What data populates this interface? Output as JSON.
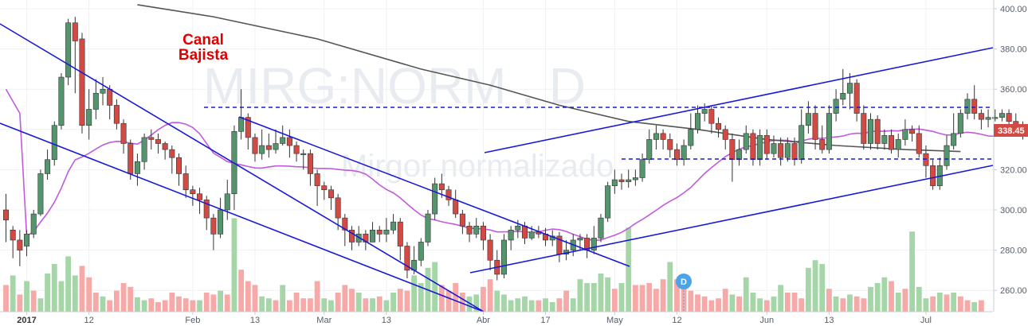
{
  "chart_data": {
    "type": "candlestick",
    "watermark_symbol": "MIRG:NORM , D",
    "watermark_name": "Mirgor normalizado",
    "annotation": {
      "line1": "Canal",
      "line2": "Bajista"
    },
    "last_price_label": "338.45",
    "dividend_marker": "D",
    "y_axis": {
      "ticks": [
        "260.00",
        "280.00",
        "300.00",
        "320.00",
        "340.00",
        "360.00",
        "380.00",
        "400.00"
      ],
      "ylim": [
        246,
        402
      ]
    },
    "x_axis": {
      "ticks": [
        {
          "label": "2017",
          "i": 3,
          "bold": true
        },
        {
          "label": "12",
          "i": 12
        },
        {
          "label": "Feb",
          "i": 27
        },
        {
          "label": "13",
          "i": 36
        },
        {
          "label": "Mar",
          "i": 46
        },
        {
          "label": "13",
          "i": 55
        },
        {
          "label": "Abr",
          "i": 69
        },
        {
          "label": "17",
          "i": 78
        },
        {
          "label": "May",
          "i": 88
        },
        {
          "label": "12",
          "i": 97
        },
        {
          "label": "Jun",
          "i": 110
        },
        {
          "label": "13",
          "i": 119
        },
        {
          "label": "Jul",
          "i": 133
        }
      ]
    },
    "candles": [
      [
        300,
        295,
        308,
        284
      ],
      [
        290,
        285,
        292,
        276
      ],
      [
        285,
        280,
        290,
        272
      ],
      [
        282,
        288,
        290,
        277
      ],
      [
        288,
        298,
        300,
        286
      ],
      [
        298,
        318,
        320,
        297
      ],
      [
        318,
        325,
        330,
        315
      ],
      [
        325,
        342,
        344,
        322
      ],
      [
        342,
        366,
        368,
        340
      ],
      [
        366,
        393,
        395,
        362
      ],
      [
        393,
        384,
        396,
        358
      ],
      [
        385,
        342,
        388,
        338
      ],
      [
        342,
        350,
        360,
        335
      ],
      [
        350,
        358,
        365,
        345
      ],
      [
        358,
        360,
        366,
        352
      ],
      [
        360,
        352,
        362,
        345
      ],
      [
        352,
        343,
        355,
        340
      ],
      [
        343,
        333,
        345,
        328
      ],
      [
        333,
        318,
        335,
        315
      ],
      [
        318,
        324,
        328,
        312
      ],
      [
        324,
        336,
        338,
        320
      ],
      [
        336,
        335,
        340,
        330
      ],
      [
        335,
        333,
        338,
        328
      ],
      [
        333,
        330,
        334,
        325
      ],
      [
        330,
        326,
        332,
        318
      ],
      [
        326,
        318,
        328,
        312
      ],
      [
        318,
        310,
        322,
        306
      ],
      [
        310,
        308,
        312,
        302
      ],
      [
        308,
        305,
        311,
        298
      ],
      [
        305,
        296,
        307,
        290
      ],
      [
        296,
        288,
        298,
        280
      ],
      [
        288,
        300,
        306,
        286
      ],
      [
        300,
        308,
        315,
        295
      ],
      [
        308,
        339,
        342,
        300
      ],
      [
        339,
        346,
        360,
        335
      ],
      [
        346,
        336,
        348,
        330
      ],
      [
        336,
        328,
        338,
        324
      ],
      [
        328,
        332,
        340,
        325
      ],
      [
        332,
        330,
        338,
        326
      ],
      [
        330,
        333,
        340,
        328
      ],
      [
        333,
        336,
        342,
        332
      ],
      [
        336,
        332,
        340,
        326
      ],
      [
        332,
        328,
        334,
        324
      ],
      [
        328,
        328,
        330,
        320
      ],
      [
        328,
        318,
        330,
        312
      ],
      [
        318,
        312,
        320,
        302
      ],
      [
        312,
        310,
        314,
        305
      ],
      [
        310,
        306,
        312,
        300
      ],
      [
        306,
        296,
        308,
        290
      ],
      [
        296,
        290,
        298,
        282
      ],
      [
        290,
        284,
        292,
        280
      ],
      [
        284,
        288,
        292,
        282
      ],
      [
        288,
        284,
        290,
        280
      ],
      [
        284,
        290,
        294,
        286
      ],
      [
        290,
        288,
        292,
        284
      ],
      [
        288,
        290,
        296,
        284
      ],
      [
        290,
        294,
        298,
        288
      ],
      [
        294,
        282,
        296,
        275
      ],
      [
        282,
        270,
        284,
        266
      ],
      [
        270,
        275,
        282,
        268
      ],
      [
        275,
        284,
        286,
        272
      ],
      [
        284,
        298,
        300,
        282
      ],
      [
        298,
        313,
        316,
        295
      ],
      [
        313,
        310,
        318,
        306
      ],
      [
        310,
        305,
        312,
        302
      ],
      [
        305,
        298,
        310,
        296
      ],
      [
        298,
        292,
        300,
        288
      ],
      [
        292,
        288,
        294,
        284
      ],
      [
        288,
        292,
        296,
        286
      ],
      [
        292,
        285,
        294,
        280
      ],
      [
        285,
        275,
        288,
        270
      ],
      [
        275,
        268,
        280,
        265
      ],
      [
        268,
        285,
        288,
        266
      ],
      [
        285,
        290,
        292,
        280
      ],
      [
        290,
        292,
        295,
        286
      ],
      [
        292,
        286,
        294,
        283
      ],
      [
        286,
        289,
        292,
        285
      ],
      [
        289,
        288,
        292,
        286
      ],
      [
        288,
        285,
        291,
        282
      ],
      [
        285,
        287,
        290,
        282
      ],
      [
        287,
        278,
        289,
        274
      ],
      [
        278,
        280,
        285,
        275
      ],
      [
        280,
        285,
        288,
        277
      ],
      [
        285,
        286,
        288,
        280
      ],
      [
        286,
        280,
        288,
        276
      ],
      [
        280,
        286,
        292,
        278
      ],
      [
        286,
        296,
        298,
        284
      ],
      [
        296,
        312,
        314,
        294
      ],
      [
        312,
        315,
        320,
        308
      ],
      [
        315,
        314,
        318,
        310
      ],
      [
        314,
        315,
        320,
        311
      ],
      [
        315,
        316,
        320,
        312
      ],
      [
        316,
        325,
        328,
        314
      ],
      [
        325,
        335,
        340,
        323
      ],
      [
        335,
        338,
        342,
        330
      ],
      [
        338,
        335,
        340,
        330
      ],
      [
        335,
        330,
        338,
        326
      ],
      [
        330,
        325,
        333,
        322
      ],
      [
        325,
        332,
        335,
        322
      ],
      [
        332,
        340,
        348,
        330
      ],
      [
        340,
        348,
        352,
        338
      ],
      [
        348,
        350,
        353,
        344
      ],
      [
        350,
        343,
        352,
        338
      ],
      [
        343,
        340,
        346,
        336
      ],
      [
        340,
        335,
        342,
        330
      ],
      [
        335,
        325,
        338,
        314
      ],
      [
        325,
        330,
        335,
        322
      ],
      [
        330,
        338,
        342,
        328
      ],
      [
        338,
        325,
        340,
        322
      ],
      [
        325,
        337,
        340,
        322
      ],
      [
        337,
        328,
        340,
        325
      ],
      [
        328,
        333,
        337,
        326
      ],
      [
        333,
        326,
        336,
        322
      ],
      [
        326,
        333,
        336,
        324
      ],
      [
        333,
        325,
        336,
        322
      ],
      [
        325,
        342,
        350,
        323
      ],
      [
        342,
        348,
        354,
        338
      ],
      [
        348,
        335,
        352,
        330
      ],
      [
        335,
        330,
        342,
        328
      ],
      [
        330,
        348,
        352,
        328
      ],
      [
        348,
        355,
        360,
        344
      ],
      [
        355,
        358,
        370,
        352
      ],
      [
        358,
        363,
        368,
        350
      ],
      [
        363,
        348,
        365,
        344
      ],
      [
        348,
        333,
        352,
        330
      ],
      [
        333,
        345,
        348,
        330
      ],
      [
        345,
        333,
        347,
        330
      ],
      [
        333,
        337,
        340,
        330
      ],
      [
        337,
        330,
        340,
        328
      ],
      [
        330,
        335,
        338,
        326
      ],
      [
        335,
        340,
        345,
        332
      ],
      [
        340,
        338,
        342,
        334
      ],
      [
        338,
        328,
        342,
        326
      ],
      [
        328,
        322,
        332,
        316
      ],
      [
        322,
        312,
        325,
        310
      ],
      [
        312,
        322,
        326,
        310
      ],
      [
        322,
        332,
        337,
        320
      ],
      [
        332,
        338,
        348,
        330
      ],
      [
        338,
        348,
        350,
        336
      ],
      [
        348,
        355,
        358,
        345
      ],
      [
        355,
        348,
        362,
        345
      ],
      [
        348,
        345,
        350,
        340
      ],
      [
        345,
        346,
        350,
        341
      ],
      [
        346,
        346,
        350,
        344
      ],
      [
        346,
        348,
        350,
        344
      ],
      [
        348,
        344,
        350,
        340
      ],
      [
        344,
        340,
        348,
        338
      ],
      [
        340,
        338,
        344,
        335
      ]
    ],
    "volume": [
      [
        0,
        0.28
      ],
      [
        1,
        0.38
      ],
      [
        0,
        0.18
      ],
      [
        1,
        0.32
      ],
      [
        0,
        0.22
      ],
      [
        1,
        0.14
      ],
      [
        1,
        0.4
      ],
      [
        1,
        0.5
      ],
      [
        1,
        0.32
      ],
      [
        1,
        0.58
      ],
      [
        1,
        0.38
      ],
      [
        0,
        0.48
      ],
      [
        0,
        0.36
      ],
      [
        0,
        0.2
      ],
      [
        1,
        0.16
      ],
      [
        0,
        0.12
      ],
      [
        0,
        0.22
      ],
      [
        0,
        0.3
      ],
      [
        0,
        0.26
      ],
      [
        1,
        0.15
      ],
      [
        1,
        0.12
      ],
      [
        0,
        0.14
      ],
      [
        0,
        0.1
      ],
      [
        0,
        0.12
      ],
      [
        0,
        0.2
      ],
      [
        0,
        0.16
      ],
      [
        0,
        0.14
      ],
      [
        0,
        0.12
      ],
      [
        1,
        0.12
      ],
      [
        0,
        0.2
      ],
      [
        0,
        0.18
      ],
      [
        1,
        0.22
      ],
      [
        0,
        0.18
      ],
      [
        1,
        0.98
      ],
      [
        0,
        0.44
      ],
      [
        0,
        0.32
      ],
      [
        0,
        0.28
      ],
      [
        1,
        0.16
      ],
      [
        1,
        0.14
      ],
      [
        0,
        0.12
      ],
      [
        1,
        0.28
      ],
      [
        0,
        0.12
      ],
      [
        0,
        0.2
      ],
      [
        0,
        0.14
      ],
      [
        0,
        0.14
      ],
      [
        0,
        0.32
      ],
      [
        1,
        0.14
      ],
      [
        1,
        0.12
      ],
      [
        0,
        0.2
      ],
      [
        0,
        0.28
      ],
      [
        0,
        0.24
      ],
      [
        1,
        0.2
      ],
      [
        0,
        0.14
      ],
      [
        1,
        0.14
      ],
      [
        0,
        0.16
      ],
      [
        1,
        0.12
      ],
      [
        1,
        0.2
      ],
      [
        0,
        0.24
      ],
      [
        0,
        0.22
      ],
      [
        1,
        0.38
      ],
      [
        1,
        0.3
      ],
      [
        1,
        0.46
      ],
      [
        1,
        0.52
      ],
      [
        0,
        0.28
      ],
      [
        0,
        0.22
      ],
      [
        0,
        0.3
      ],
      [
        0,
        0.2
      ],
      [
        1,
        0.16
      ],
      [
        1,
        0.18
      ],
      [
        0,
        0.26
      ],
      [
        0,
        0.34
      ],
      [
        1,
        0.22
      ],
      [
        1,
        0.18
      ],
      [
        1,
        0.12
      ],
      [
        1,
        0.14
      ],
      [
        1,
        0.16
      ],
      [
        1,
        0.12
      ],
      [
        0,
        0.12
      ],
      [
        1,
        0.14
      ],
      [
        1,
        0.1
      ],
      [
        0,
        0.14
      ],
      [
        0,
        0.22
      ],
      [
        1,
        0.14
      ],
      [
        1,
        0.34
      ],
      [
        1,
        0.3
      ],
      [
        1,
        0.3
      ],
      [
        1,
        0.4
      ],
      [
        1,
        0.36
      ],
      [
        0,
        0.24
      ],
      [
        1,
        0.3
      ],
      [
        1,
        0.88
      ],
      [
        0,
        0.28
      ],
      [
        0,
        0.28
      ],
      [
        0,
        0.3
      ],
      [
        0,
        0.24
      ],
      [
        0,
        0.34
      ],
      [
        1,
        0.52
      ],
      [
        0,
        0.34
      ],
      [
        0,
        0.28
      ],
      [
        0,
        0.22
      ],
      [
        0,
        0.18
      ],
      [
        0,
        0.16
      ],
      [
        0,
        0.12
      ],
      [
        0,
        0.14
      ],
      [
        0,
        0.24
      ],
      [
        1,
        0.18
      ],
      [
        0,
        0.16
      ],
      [
        1,
        0.36
      ],
      [
        1,
        0.2
      ],
      [
        1,
        0.14
      ],
      [
        0,
        0.12
      ],
      [
        1,
        0.16
      ],
      [
        1,
        0.28
      ],
      [
        0,
        0.2
      ],
      [
        0,
        0.2
      ],
      [
        0,
        0.14
      ],
      [
        1,
        0.46
      ],
      [
        1,
        0.54
      ],
      [
        1,
        0.5
      ],
      [
        0,
        0.24
      ],
      [
        1,
        0.16
      ],
      [
        0,
        0.14
      ],
      [
        1,
        0.18
      ],
      [
        0,
        0.16
      ],
      [
        0,
        0.14
      ],
      [
        1,
        0.26
      ],
      [
        1,
        0.3
      ],
      [
        1,
        0.36
      ],
      [
        0,
        0.32
      ],
      [
        1,
        0.2
      ],
      [
        0,
        0.24
      ],
      [
        1,
        0.84
      ],
      [
        1,
        0.26
      ],
      [
        1,
        0.14
      ],
      [
        0,
        0.16
      ],
      [
        1,
        0.2
      ],
      [
        0,
        0.18
      ],
      [
        1,
        0.2
      ],
      [
        0,
        0.16
      ],
      [
        0,
        0.12
      ],
      [
        1,
        0.1
      ],
      [
        0,
        0.12
      ]
    ],
    "sma_long": [
      [
        19,
        402
      ],
      [
        30,
        396
      ],
      [
        45,
        385
      ],
      [
        60,
        370
      ],
      [
        70,
        362
      ],
      [
        80,
        352
      ],
      [
        90,
        344
      ],
      [
        100,
        340
      ],
      [
        110,
        335
      ],
      [
        120,
        332
      ],
      [
        130,
        330
      ],
      [
        138,
        329
      ]
    ],
    "colors": {
      "up": "#55956d",
      "down": "#d24a43",
      "up_vol": "#a5d6a7",
      "down_vol": "#f6a9a6",
      "sma_short": "#c05bdc",
      "sma_long": "#555555",
      "trend": "#1a1ad6",
      "price_bg": "#d24a43",
      "dividend": "#4da3e8"
    }
  }
}
